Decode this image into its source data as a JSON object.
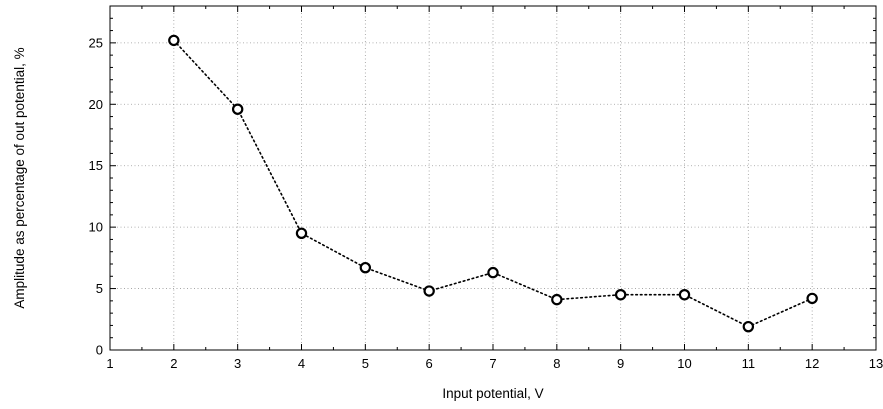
{
  "chart_data": {
    "type": "line",
    "title": "",
    "xlabel": "Input potential, V",
    "ylabel": "Amplitude as percentage of out potential, %",
    "xlim": [
      1,
      13
    ],
    "ylim": [
      0,
      28
    ],
    "xticks": [
      1,
      2,
      3,
      4,
      5,
      6,
      7,
      8,
      9,
      10,
      11,
      12,
      13
    ],
    "yticks": [
      0,
      5,
      10,
      15,
      20,
      25
    ],
    "grid": true,
    "legend": "none",
    "series": [
      {
        "x": [
          2,
          3,
          4,
          5,
          6,
          7,
          8,
          9,
          10,
          11,
          12
        ],
        "y": [
          25.2,
          19.6,
          9.5,
          6.7,
          4.8,
          6.3,
          4.1,
          4.5,
          4.5,
          1.9,
          4.2
        ],
        "line_style": "dotted",
        "marker": "open-circle",
        "color": "#000000"
      }
    ]
  }
}
